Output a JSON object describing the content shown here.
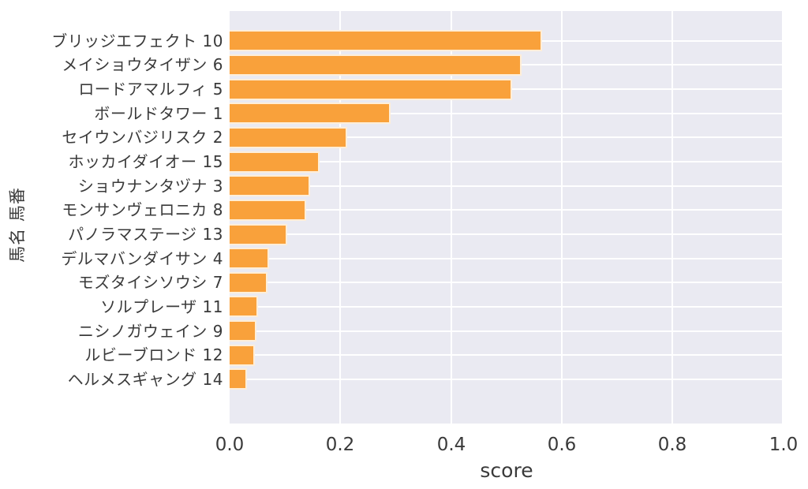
{
  "chart_data": {
    "type": "bar",
    "orientation": "horizontal",
    "title": "",
    "xlabel": "score",
    "ylabel": "馬名 馬番",
    "xlim": [
      0.0,
      1.0
    ],
    "x_ticks": [
      "0.0",
      "0.2",
      "0.4",
      "0.6",
      "0.8",
      "1.0"
    ],
    "grid": true,
    "legend": false,
    "categories": [
      "ブリッジエフェクト 10",
      "メイショウタイザン 6",
      "ロードアマルフィ 5",
      "ボールドタワー 1",
      "セイウンバジリスク 2",
      "ホッカイダイオー 15",
      "ショウナンタヅナ 3",
      "モンサンヴェロニカ 8",
      "パノラマステージ 13",
      "デルマバンダイサン 4",
      "モズタイシソウシ 7",
      "ソルプレーザ 11",
      "ニシノガウェイン 9",
      "ルビーブロンド 12",
      "ヘルメスギャング 14"
    ],
    "values": [
      0.564,
      0.527,
      0.51,
      0.291,
      0.212,
      0.163,
      0.145,
      0.138,
      0.104,
      0.071,
      0.068,
      0.052,
      0.048,
      0.045,
      0.031
    ],
    "colors": {
      "bar": "#f9a13b",
      "bar_edge": "#fff7ec",
      "plot_background": "#eaeaf2",
      "figure_background": "#ffffff",
      "gridline": "#ffffff",
      "text": "#3a3a3a"
    }
  }
}
